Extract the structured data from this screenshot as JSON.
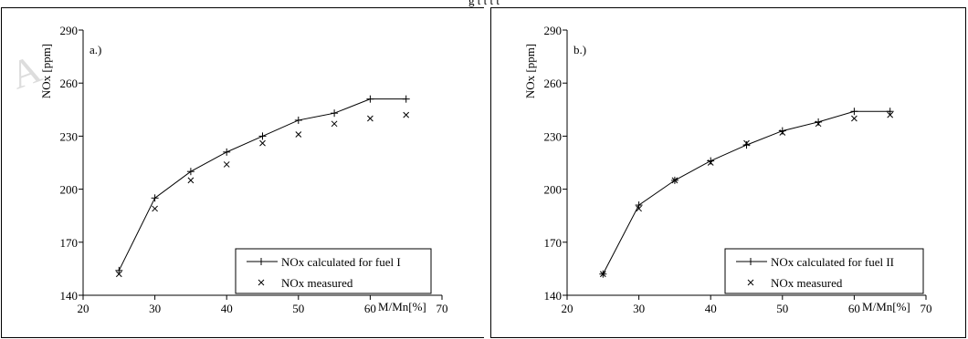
{
  "page": {
    "top_text": "g t t t t"
  },
  "chart_data": [
    {
      "type": "line",
      "panel_label": "a.)",
      "ylabel": "NOx [ppm]",
      "xlabel": "M/Mn[%]",
      "xlim": [
        20,
        70
      ],
      "ylim": [
        140,
        290
      ],
      "x_ticks": [
        20,
        30,
        40,
        50,
        60,
        70
      ],
      "y_ticks": [
        140,
        170,
        200,
        230,
        260,
        290
      ],
      "grid": false,
      "legend_position": "bottom-right",
      "series": [
        {
          "name": "NOx calculated for fuel I",
          "marker": "plus",
          "line": true,
          "x": [
            25,
            30,
            35,
            40,
            45,
            50,
            55,
            60,
            65
          ],
          "y": [
            154,
            195,
            210,
            221,
            230,
            239,
            243,
            251,
            251
          ]
        },
        {
          "name": "NOx measured",
          "marker": "x",
          "line": false,
          "x": [
            25,
            30,
            35,
            40,
            45,
            50,
            55,
            60,
            65
          ],
          "y": [
            152,
            189,
            205,
            214,
            226,
            231,
            237,
            240,
            242
          ]
        }
      ]
    },
    {
      "type": "line",
      "panel_label": "b.)",
      "ylabel": "NOx [ppm]",
      "xlabel": "M/Mn[%]",
      "xlim": [
        20,
        70
      ],
      "ylim": [
        140,
        290
      ],
      "x_ticks": [
        20,
        30,
        40,
        50,
        60,
        70
      ],
      "y_ticks": [
        140,
        170,
        200,
        230,
        260,
        290
      ],
      "grid": false,
      "legend_position": "bottom-right",
      "series": [
        {
          "name": "NOx calculated for fuel II",
          "marker": "plus",
          "line": true,
          "x": [
            25,
            30,
            35,
            40,
            45,
            50,
            55,
            60,
            65
          ],
          "y": [
            152,
            191,
            205,
            216,
            225,
            233,
            238,
            244,
            244
          ]
        },
        {
          "name": "NOx measured",
          "marker": "x",
          "line": false,
          "x": [
            25,
            30,
            35,
            40,
            45,
            50,
            55,
            60,
            65
          ],
          "y": [
            152,
            189,
            205,
            215,
            226,
            232,
            237,
            240,
            242
          ]
        }
      ]
    }
  ]
}
